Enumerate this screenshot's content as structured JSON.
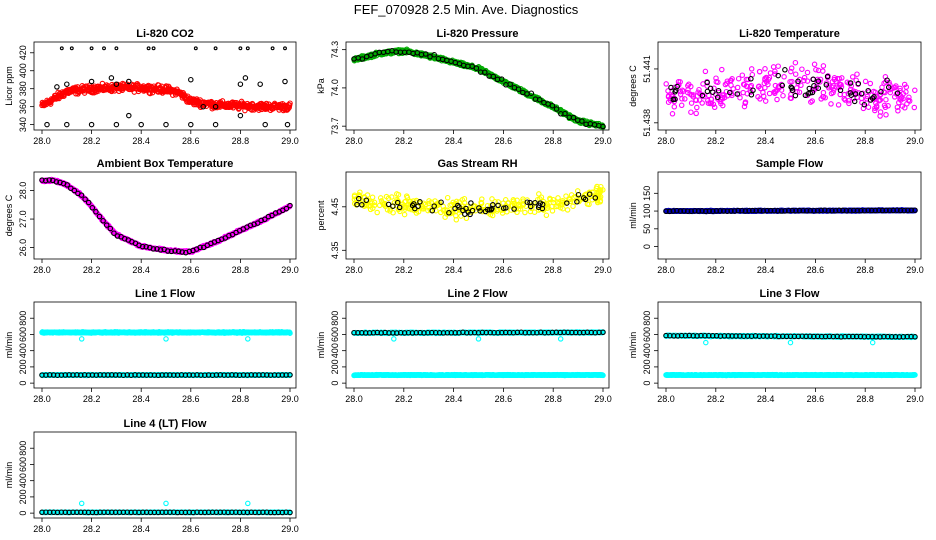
{
  "figure": {
    "title": "FEF_070928  2.5 Min. Ave. Diagnostics"
  },
  "chart_data": [
    {
      "id": "co2",
      "type": "scatter",
      "title": "Li-820 CO2",
      "ylabel": "Licor ppm",
      "xlim": [
        28.0,
        29.0
      ],
      "ylim": [
        334,
        432
      ],
      "xticks": [
        "28.0",
        "28.2",
        "28.4",
        "28.6",
        "28.8",
        "29.0"
      ],
      "yticks": [
        "340",
        "360",
        "380",
        "400",
        "420"
      ],
      "series": [
        {
          "name": "raw",
          "color": "#ff0000",
          "mode": "dense",
          "noise": 6,
          "x": [
            28.0,
            28.1,
            28.2,
            28.3,
            28.4,
            28.5,
            28.55,
            28.6,
            28.7,
            28.8,
            28.9,
            29.0
          ],
          "y": [
            361,
            377,
            380,
            381,
            381,
            379,
            376,
            366,
            362,
            361,
            360,
            360
          ]
        },
        {
          "name": "outliers-top",
          "color": "#000000",
          "mode": "points",
          "ptsize": 1.4,
          "x": [
            28.08,
            28.12,
            28.2,
            28.25,
            28.3,
            28.43,
            28.45,
            28.62,
            28.7,
            28.8,
            28.83,
            28.93,
            28.98
          ],
          "y": [
            425,
            425,
            425,
            425,
            425,
            425,
            425,
            425,
            425,
            425,
            425,
            425,
            425
          ]
        },
        {
          "name": "outliers-mid",
          "color": "#000000",
          "mode": "points",
          "x": [
            28.06,
            28.1,
            28.2,
            28.28,
            28.3,
            28.35,
            28.6,
            28.65,
            28.7,
            28.8,
            28.82,
            28.88,
            28.98
          ],
          "y": [
            382,
            385,
            388,
            392,
            385,
            388,
            390,
            360,
            360,
            385,
            392,
            385,
            388
          ]
        },
        {
          "name": "outliers-bottom",
          "color": "#000000",
          "mode": "points",
          "x": [
            28.02,
            28.1,
            28.2,
            28.3,
            28.35,
            28.4,
            28.5,
            28.6,
            28.7,
            28.8,
            28.9,
            28.99
          ],
          "y": [
            340,
            340,
            340,
            340,
            350,
            340,
            340,
            340,
            340,
            350,
            340,
            340
          ]
        }
      ]
    },
    {
      "id": "pressure",
      "type": "scatter",
      "title": "Li-820 Pressure",
      "ylabel": "kPa",
      "xlim": [
        28.0,
        29.0
      ],
      "ylim": [
        73.67,
        74.36
      ],
      "xticks": [
        "28.0",
        "28.2",
        "28.4",
        "28.6",
        "28.8",
        "29.0"
      ],
      "yticks": [
        "73.7",
        "74.0",
        "74.3"
      ],
      "series": [
        {
          "name": "raw",
          "color": "#00aa00",
          "mode": "dense",
          "noise": 0.02,
          "x": [
            28.0,
            28.1,
            28.2,
            28.3,
            28.4,
            28.5,
            28.6,
            28.7,
            28.8,
            28.9,
            29.0
          ],
          "y": [
            74.22,
            74.27,
            74.29,
            74.25,
            74.2,
            74.15,
            74.05,
            73.95,
            73.85,
            73.74,
            73.7
          ]
        },
        {
          "name": "avg",
          "color": "#000000",
          "mode": "follow",
          "noise": 0.025,
          "n": 60,
          "x": [
            28.0,
            28.1,
            28.2,
            28.3,
            28.4,
            28.5,
            28.6,
            28.7,
            28.8,
            28.9,
            29.0
          ],
          "y": [
            74.22,
            74.27,
            74.29,
            74.25,
            74.2,
            74.15,
            74.05,
            73.95,
            73.85,
            73.74,
            73.7
          ]
        }
      ]
    },
    {
      "id": "temperature",
      "type": "scatter",
      "title": "Li-820 Temperature",
      "ylabel": "degrees C",
      "xlim": [
        28.0,
        29.0
      ],
      "ylim": [
        51.4376,
        51.4425
      ],
      "xticks": [
        "28.0",
        "28.2",
        "28.4",
        "28.6",
        "28.8",
        "29.0"
      ],
      "yticks": [
        "51.438",
        "51.441"
      ],
      "series": [
        {
          "name": "raw",
          "color": "#ff00ff",
          "mode": "noise",
          "n": 320,
          "x": [
            28.0,
            28.5,
            29.0
          ],
          "y": [
            51.4395,
            51.4402,
            51.4394
          ],
          "noise": 0.0016
        },
        {
          "name": "avg",
          "color": "#000000",
          "mode": "noise",
          "n": 55,
          "x": [
            28.0,
            28.5,
            29.0
          ],
          "y": [
            51.4395,
            51.4401,
            51.4394
          ],
          "noise": 0.0011
        }
      ]
    },
    {
      "id": "ambient",
      "type": "scatter",
      "title": "Ambient Box Temperature",
      "ylabel": "degrees C",
      "xlim": [
        28.0,
        29.0
      ],
      "ylim": [
        25.6,
        28.65
      ],
      "xticks": [
        "28.0",
        "28.2",
        "28.4",
        "28.6",
        "28.8",
        "29.0"
      ],
      "yticks": [
        "26.0",
        "27.0",
        "28.0"
      ],
      "series": [
        {
          "name": "raw",
          "color": "#ff00ff",
          "mode": "dense",
          "noise": 0.05,
          "x": [
            28.0,
            28.05,
            28.1,
            28.15,
            28.2,
            28.25,
            28.3,
            28.4,
            28.5,
            28.6,
            28.7,
            28.8,
            28.9,
            29.0
          ],
          "y": [
            28.35,
            28.35,
            28.2,
            27.9,
            27.45,
            26.9,
            26.45,
            26.05,
            25.9,
            25.85,
            26.2,
            26.6,
            27.0,
            27.45
          ]
        },
        {
          "name": "avg",
          "color": "#000000",
          "mode": "follow",
          "noise": 0.05,
          "n": 70,
          "x": [
            28.0,
            28.05,
            28.1,
            28.15,
            28.2,
            28.25,
            28.3,
            28.4,
            28.5,
            28.6,
            28.7,
            28.8,
            28.9,
            29.0
          ],
          "y": [
            28.35,
            28.35,
            28.2,
            27.9,
            27.45,
            26.9,
            26.45,
            26.05,
            25.9,
            25.85,
            26.2,
            26.6,
            27.0,
            27.45
          ]
        }
      ]
    },
    {
      "id": "rh",
      "type": "scatter",
      "title": "Gas Stream RH",
      "ylabel": "percent",
      "xlim": [
        28.0,
        29.0
      ],
      "ylim": [
        4.33,
        4.53
      ],
      "xticks": [
        "28.0",
        "28.2",
        "28.4",
        "28.6",
        "28.8",
        "29.0"
      ],
      "yticks": [
        "4.35",
        "4.45"
      ],
      "series": [
        {
          "name": "raw",
          "color": "#ffff00",
          "mode": "noise",
          "n": 330,
          "x": [
            28.0,
            28.2,
            28.5,
            28.8,
            29.0
          ],
          "y": [
            4.465,
            4.452,
            4.445,
            4.455,
            4.48
          ],
          "noise": 0.03
        },
        {
          "name": "avg",
          "color": "#000000",
          "mode": "noise",
          "n": 55,
          "x": [
            28.0,
            28.2,
            28.5,
            28.8,
            29.0
          ],
          "y": [
            4.465,
            4.452,
            4.445,
            4.455,
            4.48
          ],
          "noise": 0.02
        }
      ]
    },
    {
      "id": "sample-flow",
      "type": "scatter",
      "title": "Sample Flow",
      "ylabel": "ml/min",
      "xlim": [
        28.0,
        29.0
      ],
      "ylim": [
        -35,
        210
      ],
      "xticks": [
        "28.0",
        "28.2",
        "28.4",
        "28.6",
        "28.8",
        "29.0"
      ],
      "yticks": [
        "0",
        "50",
        "100",
        "150"
      ],
      "series": [
        {
          "name": "raw",
          "color": "#0000cc",
          "mode": "dense",
          "noise": 2,
          "x": [
            28.0,
            29.0
          ],
          "y": [
            100,
            102
          ]
        },
        {
          "name": "avg",
          "color": "#000000",
          "mode": "follow",
          "noise": 1.5,
          "n": 70,
          "x": [
            28.0,
            29.0
          ],
          "y": [
            100,
            102
          ]
        }
      ]
    },
    {
      "id": "line1",
      "type": "scatter",
      "title": "Line 1 Flow",
      "ylabel": "ml/min",
      "xlim": [
        28.0,
        29.0
      ],
      "ylim": [
        -60,
        1000
      ],
      "xticks": [
        "28.0",
        "28.2",
        "28.4",
        "28.6",
        "28.8",
        "29.0"
      ],
      "yticks": [
        "0",
        "200",
        "400",
        "600",
        "800"
      ],
      "series": [
        {
          "name": "high",
          "color": "#00ffff",
          "mode": "dense",
          "noise": 10,
          "x": [
            28.0,
            29.0
          ],
          "y": [
            625,
            625
          ]
        },
        {
          "name": "low",
          "color": "#00ffff",
          "mode": "dense",
          "noise": 6,
          "x": [
            28.0,
            29.0
          ],
          "y": [
            100,
            100
          ]
        },
        {
          "name": "avg",
          "color": "#000000",
          "mode": "follow",
          "noise": 4,
          "n": 65,
          "x": [
            28.0,
            29.0
          ],
          "y": [
            100,
            100
          ]
        },
        {
          "name": "dips",
          "color": "#00ffff",
          "mode": "points",
          "x": [
            28.16,
            28.5,
            28.83
          ],
          "y": [
            545,
            545,
            545
          ]
        }
      ]
    },
    {
      "id": "line2",
      "type": "scatter",
      "title": "Line 2 Flow",
      "ylabel": "ml/min",
      "xlim": [
        28.0,
        29.0
      ],
      "ylim": [
        -60,
        1000
      ],
      "xticks": [
        "28.0",
        "28.2",
        "28.4",
        "28.6",
        "28.8",
        "29.0"
      ],
      "yticks": [
        "0",
        "200",
        "400",
        "600",
        "800"
      ],
      "series": [
        {
          "name": "high",
          "color": "#00ffff",
          "mode": "dense",
          "noise": 10,
          "x": [
            28.0,
            29.0
          ],
          "y": [
            620,
            625
          ]
        },
        {
          "name": "low",
          "color": "#00ffff",
          "mode": "dense",
          "noise": 6,
          "x": [
            28.0,
            29.0
          ],
          "y": [
            100,
            100
          ]
        },
        {
          "name": "avg",
          "color": "#000000",
          "mode": "follow",
          "noise": 5,
          "n": 65,
          "x": [
            28.0,
            29.0
          ],
          "y": [
            620,
            625
          ]
        },
        {
          "name": "dips",
          "color": "#00ffff",
          "mode": "points",
          "x": [
            28.16,
            28.5,
            28.83
          ],
          "y": [
            545,
            545,
            545
          ]
        }
      ]
    },
    {
      "id": "line3",
      "type": "scatter",
      "title": "Line 3 Flow",
      "ylabel": "ml/min",
      "xlim": [
        28.0,
        29.0
      ],
      "ylim": [
        -60,
        1000
      ],
      "xticks": [
        "28.0",
        "28.2",
        "28.4",
        "28.6",
        "28.8",
        "29.0"
      ],
      "yticks": [
        "0",
        "200",
        "400",
        "600",
        "800"
      ],
      "series": [
        {
          "name": "high",
          "color": "#00ffff",
          "mode": "dense",
          "noise": 10,
          "x": [
            28.0,
            29.0
          ],
          "y": [
            585,
            570
          ]
        },
        {
          "name": "low",
          "color": "#00ffff",
          "mode": "dense",
          "noise": 6,
          "x": [
            28.0,
            29.0
          ],
          "y": [
            100,
            100
          ]
        },
        {
          "name": "avg",
          "color": "#000000",
          "mode": "follow",
          "noise": 5,
          "n": 65,
          "x": [
            28.0,
            29.0
          ],
          "y": [
            585,
            570
          ]
        },
        {
          "name": "dips",
          "color": "#00ffff",
          "mode": "points",
          "x": [
            28.16,
            28.5,
            28.83
          ],
          "y": [
            500,
            500,
            500
          ]
        }
      ]
    },
    {
      "id": "line4",
      "type": "scatter",
      "title": "Line 4 (LT) Flow",
      "ylabel": "ml/min",
      "xlim": [
        28.0,
        29.0
      ],
      "ylim": [
        -60,
        1000
      ],
      "xticks": [
        "28.0",
        "28.2",
        "28.4",
        "28.6",
        "28.8",
        "29.0"
      ],
      "yticks": [
        "0",
        "200",
        "400",
        "600",
        "800"
      ],
      "series": [
        {
          "name": "raw",
          "color": "#00ffff",
          "mode": "dense",
          "noise": 4,
          "x": [
            28.0,
            29.0
          ],
          "y": [
            10,
            10
          ]
        },
        {
          "name": "avg",
          "color": "#000000",
          "mode": "follow",
          "noise": 3,
          "n": 65,
          "x": [
            28.0,
            29.0
          ],
          "y": [
            10,
            10
          ]
        },
        {
          "name": "spikes",
          "color": "#00ffff",
          "mode": "points",
          "x": [
            28.16,
            28.5,
            28.83
          ],
          "y": [
            120,
            120,
            120
          ]
        }
      ]
    }
  ]
}
